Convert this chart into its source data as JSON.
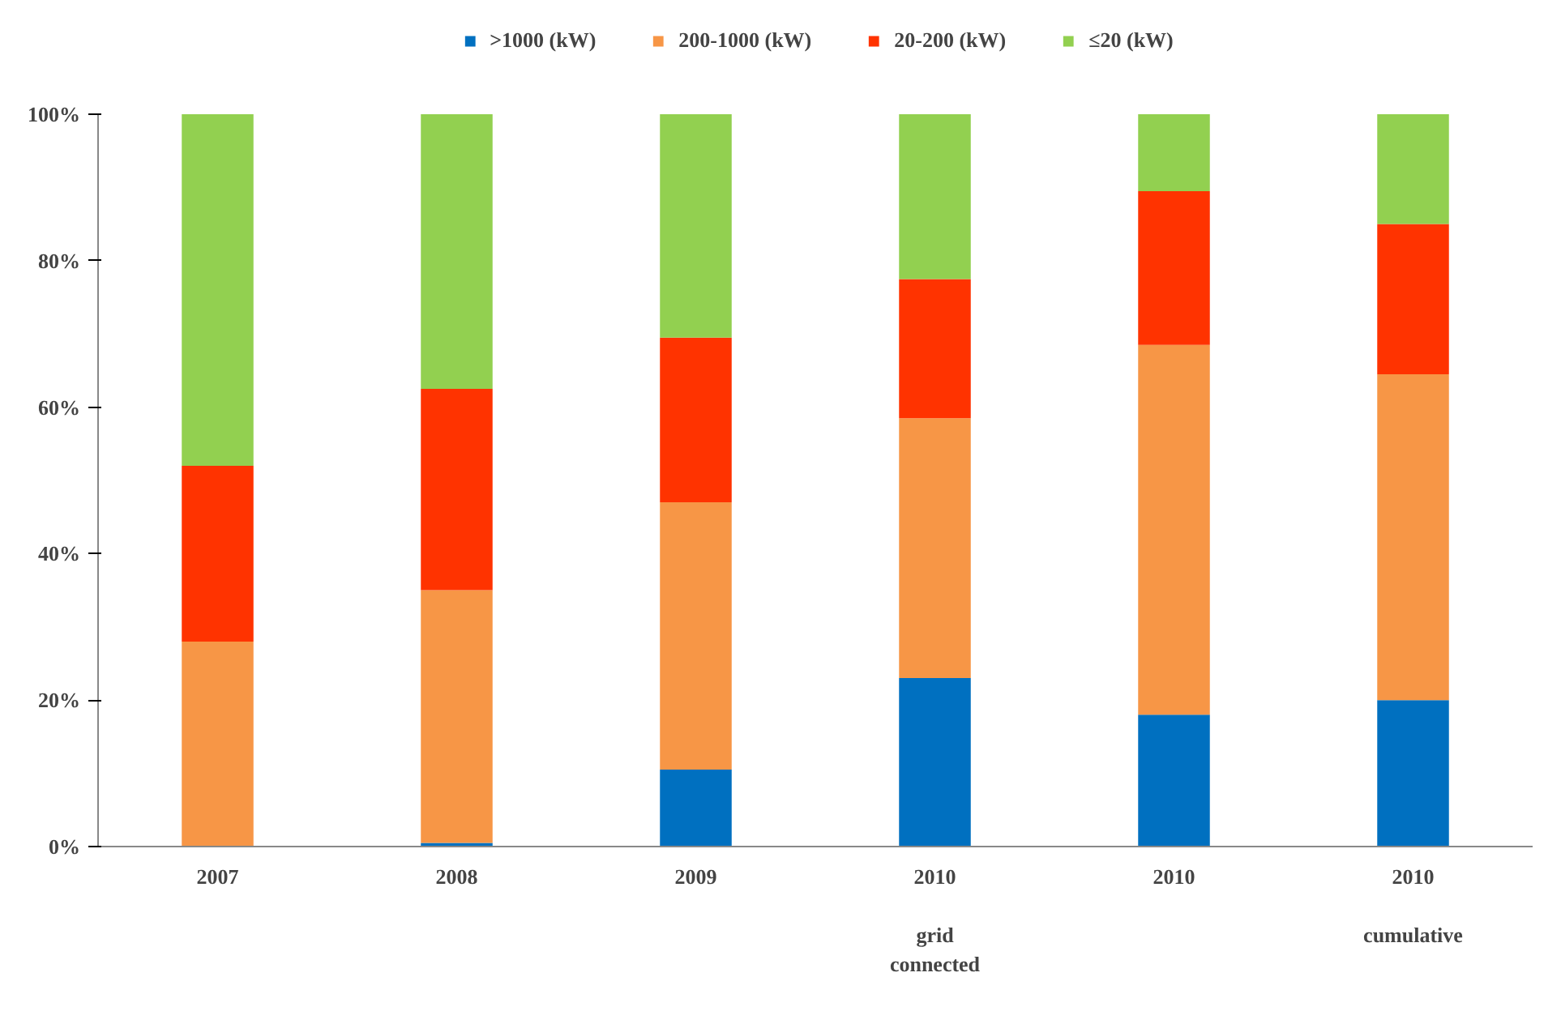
{
  "chart_data": {
    "type": "bar",
    "stacked": true,
    "categories": [
      "2007",
      "2008",
      "2009",
      "2010\n\ngrid\nconnected",
      "2010",
      "2010\n\ncumulative"
    ],
    "series": [
      {
        "name": ">1000 (kW)",
        "color": "#0070c0",
        "values": [
          0,
          0.5,
          10.5,
          23,
          18,
          20
        ]
      },
      {
        "name": "200-1000 (kW)",
        "color": "#f79646",
        "values": [
          28,
          34.5,
          36.5,
          35.5,
          50.5,
          44.5
        ]
      },
      {
        "name": "20-200 (kW)",
        "color": "#ff3300",
        "values": [
          24,
          27.5,
          22.5,
          19,
          21,
          20.5
        ]
      },
      {
        "name": "≤20 (kW)",
        "color": "#92d050",
        "values": [
          48,
          37.5,
          30.5,
          22.5,
          10.5,
          15
        ]
      }
    ],
    "ylim": [
      0,
      100
    ],
    "yticks": [
      {
        "value": 0,
        "label": "0%"
      },
      {
        "value": 20,
        "label": "20%"
      },
      {
        "value": 40,
        "label": "40%"
      },
      {
        "value": 60,
        "label": "60%"
      },
      {
        "value": 80,
        "label": "80%"
      },
      {
        "value": 100,
        "label": "100%"
      }
    ],
    "grid": false,
    "legend": "top"
  }
}
